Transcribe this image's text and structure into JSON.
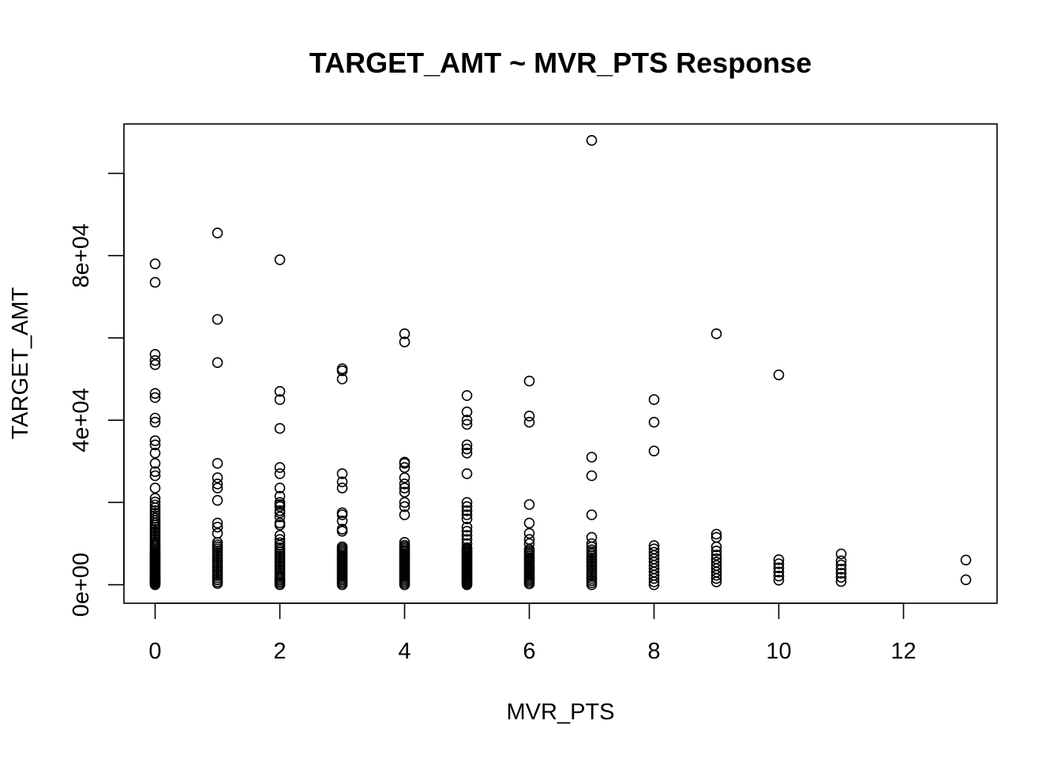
{
  "chart_data": {
    "type": "scatter",
    "title": "TARGET_AMT ~ MVR_PTS Response",
    "xlabel": "MVR_PTS",
    "ylabel": "TARGET_AMT",
    "xlim": [
      -0.5,
      13.5
    ],
    "ylim": [
      -4500,
      112000
    ],
    "x_ticks": [
      0,
      2,
      4,
      6,
      8,
      10,
      12
    ],
    "x_tick_labels": [
      "0",
      "2",
      "4",
      "6",
      "8",
      "10",
      "12"
    ],
    "y_ticks": [
      0,
      20000,
      40000,
      60000,
      80000,
      100000
    ],
    "y_tick_labels": [
      "0e+00",
      "",
      "4e+04",
      "",
      "8e+04",
      ""
    ],
    "grid": false,
    "legend": "none",
    "point_style": "open circle",
    "points": [
      [
        0,
        0
      ],
      [
        0,
        200
      ],
      [
        0,
        400
      ],
      [
        0,
        600
      ],
      [
        0,
        800
      ],
      [
        0,
        1000
      ],
      [
        0,
        1200
      ],
      [
        0,
        1400
      ],
      [
        0,
        1600
      ],
      [
        0,
        1800
      ],
      [
        0,
        2000
      ],
      [
        0,
        2300
      ],
      [
        0,
        2600
      ],
      [
        0,
        2900
      ],
      [
        0,
        3200
      ],
      [
        0,
        3500
      ],
      [
        0,
        3800
      ],
      [
        0,
        4100
      ],
      [
        0,
        4400
      ],
      [
        0,
        4700
      ],
      [
        0,
        5000
      ],
      [
        0,
        5300
      ],
      [
        0,
        5600
      ],
      [
        0,
        5900
      ],
      [
        0,
        6200
      ],
      [
        0,
        6500
      ],
      [
        0,
        6800
      ],
      [
        0,
        7100
      ],
      [
        0,
        7400
      ],
      [
        0,
        7700
      ],
      [
        0,
        8000
      ],
      [
        0,
        8400
      ],
      [
        0,
        8800
      ],
      [
        0,
        9200
      ],
      [
        0,
        9600
      ],
      [
        0,
        10000
      ],
      [
        0,
        10500
      ],
      [
        0,
        11000
      ],
      [
        0,
        11500
      ],
      [
        0,
        12000
      ],
      [
        0,
        12500
      ],
      [
        0,
        13000
      ],
      [
        0,
        13500
      ],
      [
        0,
        14000
      ],
      [
        0,
        14500
      ],
      [
        0,
        15000
      ],
      [
        0,
        15600
      ],
      [
        0,
        16200
      ],
      [
        0,
        16800
      ],
      [
        0,
        17400
      ],
      [
        0,
        18000
      ],
      [
        0,
        18700
      ],
      [
        0,
        19400
      ],
      [
        0,
        20100
      ],
      [
        0,
        21000
      ],
      [
        0,
        23500
      ],
      [
        0,
        26500
      ],
      [
        0,
        27500
      ],
      [
        0,
        29500
      ],
      [
        0,
        32000
      ],
      [
        0,
        34000
      ],
      [
        0,
        35000
      ],
      [
        0,
        39500
      ],
      [
        0,
        40500
      ],
      [
        0,
        45500
      ],
      [
        0,
        46500
      ],
      [
        0,
        53500
      ],
      [
        0,
        54500
      ],
      [
        0,
        56000
      ],
      [
        0,
        73500
      ],
      [
        0,
        78000
      ],
      [
        1,
        300
      ],
      [
        1,
        700
      ],
      [
        1,
        1200
      ],
      [
        1,
        1700
      ],
      [
        1,
        2200
      ],
      [
        1,
        2700
      ],
      [
        1,
        3200
      ],
      [
        1,
        3700
      ],
      [
        1,
        4200
      ],
      [
        1,
        4700
      ],
      [
        1,
        5200
      ],
      [
        1,
        5700
      ],
      [
        1,
        6200
      ],
      [
        1,
        6700
      ],
      [
        1,
        7200
      ],
      [
        1,
        7700
      ],
      [
        1,
        8200
      ],
      [
        1,
        8700
      ],
      [
        1,
        9200
      ],
      [
        1,
        9700
      ],
      [
        1,
        10300
      ],
      [
        1,
        12500
      ],
      [
        1,
        14000
      ],
      [
        1,
        15000
      ],
      [
        1,
        20500
      ],
      [
        1,
        23500
      ],
      [
        1,
        24500
      ],
      [
        1,
        26000
      ],
      [
        1,
        29500
      ],
      [
        1,
        54000
      ],
      [
        1,
        64500
      ],
      [
        1,
        85500
      ],
      [
        2,
        0
      ],
      [
        2,
        400
      ],
      [
        2,
        800
      ],
      [
        2,
        1200
      ],
      [
        2,
        1600
      ],
      [
        2,
        2000
      ],
      [
        2,
        2500
      ],
      [
        2,
        3000
      ],
      [
        2,
        3500
      ],
      [
        2,
        4000
      ],
      [
        2,
        4500
      ],
      [
        2,
        5000
      ],
      [
        2,
        5500
      ],
      [
        2,
        6000
      ],
      [
        2,
        6500
      ],
      [
        2,
        7000
      ],
      [
        2,
        7500
      ],
      [
        2,
        8000
      ],
      [
        2,
        8500
      ],
      [
        2,
        9000
      ],
      [
        2,
        9600
      ],
      [
        2,
        10200
      ],
      [
        2,
        11000
      ],
      [
        2,
        12000
      ],
      [
        2,
        14500
      ],
      [
        2,
        15000
      ],
      [
        2,
        16500
      ],
      [
        2,
        17500
      ],
      [
        2,
        18000
      ],
      [
        2,
        19000
      ],
      [
        2,
        19500
      ],
      [
        2,
        20000
      ],
      [
        2,
        21500
      ],
      [
        2,
        23500
      ],
      [
        2,
        27000
      ],
      [
        2,
        28500
      ],
      [
        2,
        38000
      ],
      [
        2,
        45000
      ],
      [
        2,
        47000
      ],
      [
        2,
        79000
      ],
      [
        3,
        0
      ],
      [
        3,
        400
      ],
      [
        3,
        800
      ],
      [
        3,
        1200
      ],
      [
        3,
        1600
      ],
      [
        3,
        2000
      ],
      [
        3,
        2400
      ],
      [
        3,
        2800
      ],
      [
        3,
        3200
      ],
      [
        3,
        3600
      ],
      [
        3,
        4000
      ],
      [
        3,
        4400
      ],
      [
        3,
        4800
      ],
      [
        3,
        5200
      ],
      [
        3,
        5600
      ],
      [
        3,
        6000
      ],
      [
        3,
        6400
      ],
      [
        3,
        6800
      ],
      [
        3,
        7200
      ],
      [
        3,
        7600
      ],
      [
        3,
        8000
      ],
      [
        3,
        8400
      ],
      [
        3,
        8800
      ],
      [
        3,
        9200
      ],
      [
        3,
        13000
      ],
      [
        3,
        13500
      ],
      [
        3,
        15500
      ],
      [
        3,
        17000
      ],
      [
        3,
        17500
      ],
      [
        3,
        23500
      ],
      [
        3,
        25000
      ],
      [
        3,
        27000
      ],
      [
        3,
        50000
      ],
      [
        3,
        52000
      ],
      [
        3,
        52500
      ],
      [
        4,
        0
      ],
      [
        4,
        400
      ],
      [
        4,
        800
      ],
      [
        4,
        1200
      ],
      [
        4,
        1600
      ],
      [
        4,
        2000
      ],
      [
        4,
        2400
      ],
      [
        4,
        2800
      ],
      [
        4,
        3200
      ],
      [
        4,
        3600
      ],
      [
        4,
        4000
      ],
      [
        4,
        4400
      ],
      [
        4,
        4800
      ],
      [
        4,
        5200
      ],
      [
        4,
        5600
      ],
      [
        4,
        6000
      ],
      [
        4,
        6400
      ],
      [
        4,
        6800
      ],
      [
        4,
        7200
      ],
      [
        4,
        7600
      ],
      [
        4,
        8000
      ],
      [
        4,
        8400
      ],
      [
        4,
        8800
      ],
      [
        4,
        9200
      ],
      [
        4,
        9600
      ],
      [
        4,
        10300
      ],
      [
        4,
        17000
      ],
      [
        4,
        19000
      ],
      [
        4,
        20000
      ],
      [
        4,
        22500
      ],
      [
        4,
        23500
      ],
      [
        4,
        24500
      ],
      [
        4,
        26000
      ],
      [
        4,
        28500
      ],
      [
        4,
        29500
      ],
      [
        4,
        29800
      ],
      [
        4,
        59000
      ],
      [
        4,
        61000
      ],
      [
        5,
        0
      ],
      [
        5,
        300
      ],
      [
        5,
        600
      ],
      [
        5,
        900
      ],
      [
        5,
        1200
      ],
      [
        5,
        1500
      ],
      [
        5,
        1800
      ],
      [
        5,
        2100
      ],
      [
        5,
        2400
      ],
      [
        5,
        2700
      ],
      [
        5,
        3000
      ],
      [
        5,
        3300
      ],
      [
        5,
        3600
      ],
      [
        5,
        3900
      ],
      [
        5,
        4200
      ],
      [
        5,
        4500
      ],
      [
        5,
        4800
      ],
      [
        5,
        5100
      ],
      [
        5,
        5400
      ],
      [
        5,
        5700
      ],
      [
        5,
        6000
      ],
      [
        5,
        6300
      ],
      [
        5,
        6600
      ],
      [
        5,
        6900
      ],
      [
        5,
        7200
      ],
      [
        5,
        7500
      ],
      [
        5,
        7800
      ],
      [
        5,
        8100
      ],
      [
        5,
        8400
      ],
      [
        5,
        8700
      ],
      [
        5,
        9000
      ],
      [
        5,
        10000
      ],
      [
        5,
        11000
      ],
      [
        5,
        12000
      ],
      [
        5,
        13000
      ],
      [
        5,
        14000
      ],
      [
        5,
        16000
      ],
      [
        5,
        17000
      ],
      [
        5,
        18000
      ],
      [
        5,
        19000
      ],
      [
        5,
        20000
      ],
      [
        5,
        27000
      ],
      [
        5,
        32000
      ],
      [
        5,
        33000
      ],
      [
        5,
        34000
      ],
      [
        5,
        39000
      ],
      [
        5,
        40000
      ],
      [
        5,
        42000
      ],
      [
        5,
        46000
      ],
      [
        6,
        200
      ],
      [
        6,
        600
      ],
      [
        6,
        1000
      ],
      [
        6,
        1400
      ],
      [
        6,
        1800
      ],
      [
        6,
        2200
      ],
      [
        6,
        2600
      ],
      [
        6,
        3000
      ],
      [
        6,
        3400
      ],
      [
        6,
        3800
      ],
      [
        6,
        4200
      ],
      [
        6,
        4600
      ],
      [
        6,
        5000
      ],
      [
        6,
        5400
      ],
      [
        6,
        5800
      ],
      [
        6,
        6200
      ],
      [
        6,
        6600
      ],
      [
        6,
        7000
      ],
      [
        6,
        7400
      ],
      [
        6,
        7800
      ],
      [
        6,
        8200
      ],
      [
        6,
        8600
      ],
      [
        6,
        10000
      ],
      [
        6,
        11000
      ],
      [
        6,
        12500
      ],
      [
        6,
        15000
      ],
      [
        6,
        19500
      ],
      [
        6,
        39500
      ],
      [
        6,
        41000
      ],
      [
        6,
        49500
      ],
      [
        7,
        0
      ],
      [
        7,
        500
      ],
      [
        7,
        1000
      ],
      [
        7,
        1500
      ],
      [
        7,
        2000
      ],
      [
        7,
        2500
      ],
      [
        7,
        3000
      ],
      [
        7,
        3500
      ],
      [
        7,
        4000
      ],
      [
        7,
        4500
      ],
      [
        7,
        5000
      ],
      [
        7,
        5500
      ],
      [
        7,
        6000
      ],
      [
        7,
        6500
      ],
      [
        7,
        7000
      ],
      [
        7,
        7500
      ],
      [
        7,
        8000
      ],
      [
        7,
        8500
      ],
      [
        7,
        9200
      ],
      [
        7,
        10000
      ],
      [
        7,
        11500
      ],
      [
        7,
        17000
      ],
      [
        7,
        26500
      ],
      [
        7,
        31000
      ],
      [
        7,
        108000
      ],
      [
        8,
        0
      ],
      [
        8,
        700
      ],
      [
        8,
        1500
      ],
      [
        8,
        2300
      ],
      [
        8,
        3100
      ],
      [
        8,
        3900
      ],
      [
        8,
        4700
      ],
      [
        8,
        5500
      ],
      [
        8,
        6300
      ],
      [
        8,
        7100
      ],
      [
        8,
        7900
      ],
      [
        8,
        8700
      ],
      [
        8,
        9500
      ],
      [
        8,
        32500
      ],
      [
        8,
        39500
      ],
      [
        8,
        45000
      ],
      [
        9,
        700
      ],
      [
        9,
        1500
      ],
      [
        9,
        2300
      ],
      [
        9,
        3100
      ],
      [
        9,
        3900
      ],
      [
        9,
        4700
      ],
      [
        9,
        5500
      ],
      [
        9,
        6300
      ],
      [
        9,
        7200
      ],
      [
        9,
        8200
      ],
      [
        9,
        9200
      ],
      [
        9,
        11500
      ],
      [
        9,
        12300
      ],
      [
        9,
        61000
      ],
      [
        10,
        1100
      ],
      [
        10,
        2100
      ],
      [
        10,
        3100
      ],
      [
        10,
        4100
      ],
      [
        10,
        5100
      ],
      [
        10,
        6100
      ],
      [
        10,
        51000
      ],
      [
        11,
        800
      ],
      [
        11,
        1800
      ],
      [
        11,
        2800
      ],
      [
        11,
        3800
      ],
      [
        11,
        4800
      ],
      [
        11,
        5800
      ],
      [
        11,
        7500
      ],
      [
        13,
        1200
      ],
      [
        13,
        6000
      ]
    ]
  }
}
